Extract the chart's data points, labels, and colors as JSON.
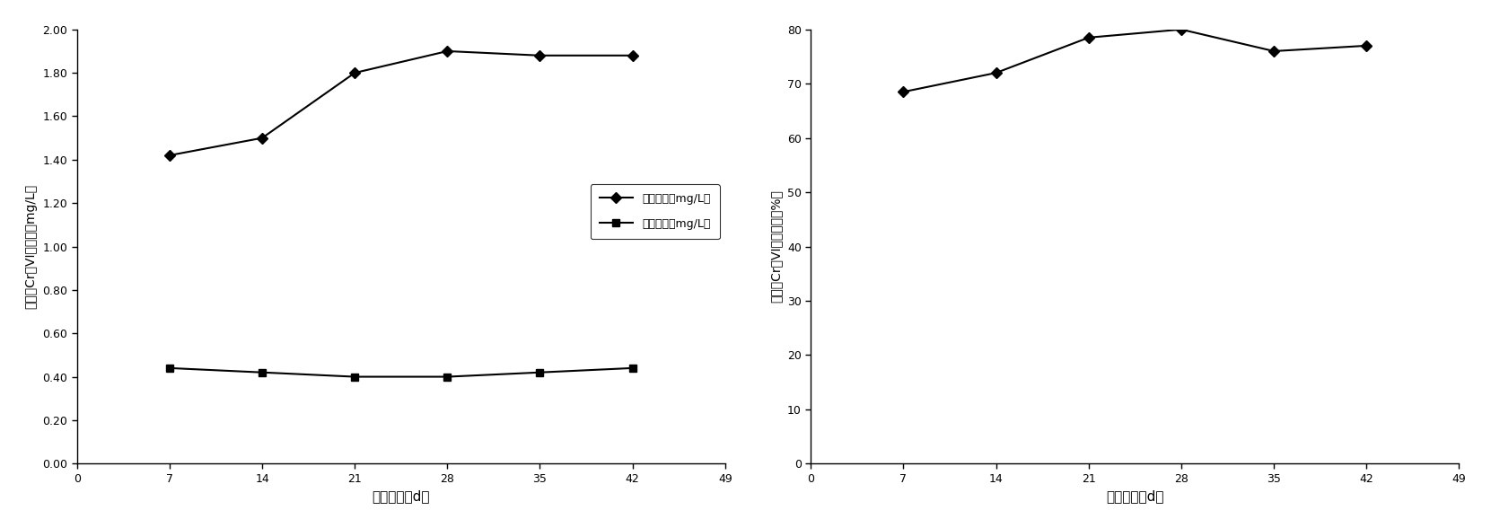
{
  "left_chart": {
    "x": [
      7,
      14,
      21,
      28,
      35,
      42
    ],
    "inflow_y": [
      1.42,
      1.5,
      1.8,
      1.9,
      1.88,
      1.88
    ],
    "outflow_y": [
      0.44,
      0.42,
      0.4,
      0.4,
      0.42,
      0.44
    ],
    "xlabel": "处理时间（d）",
    "ylabel": "废水中Cr（VI）浓度（mg/L）",
    "legend_inflow": "进水浓度（mg/L）",
    "legend_outflow": "出水浓度（mg/L）",
    "xlim": [
      0,
      49
    ],
    "ylim": [
      0.0,
      2.0
    ],
    "ytick_labels": [
      "0.00",
      "0.20",
      "0.40",
      "0.60",
      "0.80",
      "1.00",
      "1.20",
      "1.40",
      "1.60",
      "1.80",
      "2.00"
    ],
    "ytick_vals": [
      0.0,
      0.2,
      0.4,
      0.6,
      0.8,
      1.0,
      1.2,
      1.4,
      1.6,
      1.8,
      2.0
    ],
    "xtick_vals": [
      0,
      7,
      14,
      21,
      28,
      35,
      42,
      49
    ],
    "xtick_labels": [
      "0",
      "7",
      "14",
      "21",
      "28",
      "35",
      "42",
      "49"
    ]
  },
  "right_chart": {
    "x": [
      7,
      14,
      21,
      28,
      35,
      42
    ],
    "removal_y": [
      68.5,
      72.0,
      78.5,
      80.0,
      76.0,
      77.0
    ],
    "xlabel": "处理时间（d）",
    "ylabel": "废水中Cr（VI）去除率（%）",
    "xlim": [
      0,
      49
    ],
    "ylim": [
      0,
      80
    ],
    "ytick_vals": [
      0,
      10,
      20,
      30,
      40,
      50,
      60,
      70,
      80
    ],
    "ytick_labels": [
      "0",
      "10",
      "20",
      "30",
      "40",
      "50",
      "60",
      "70",
      "80"
    ],
    "xtick_vals": [
      0,
      7,
      14,
      21,
      28,
      35,
      42,
      49
    ],
    "xtick_labels": [
      "0",
      "7",
      "14",
      "21",
      "28",
      "35",
      "42",
      "49"
    ]
  },
  "line_color": "#000000",
  "marker_inflow": "D",
  "marker_outflow": "s",
  "marker_removal": "D",
  "bg_color": "#ffffff",
  "gray_color": "#555555"
}
